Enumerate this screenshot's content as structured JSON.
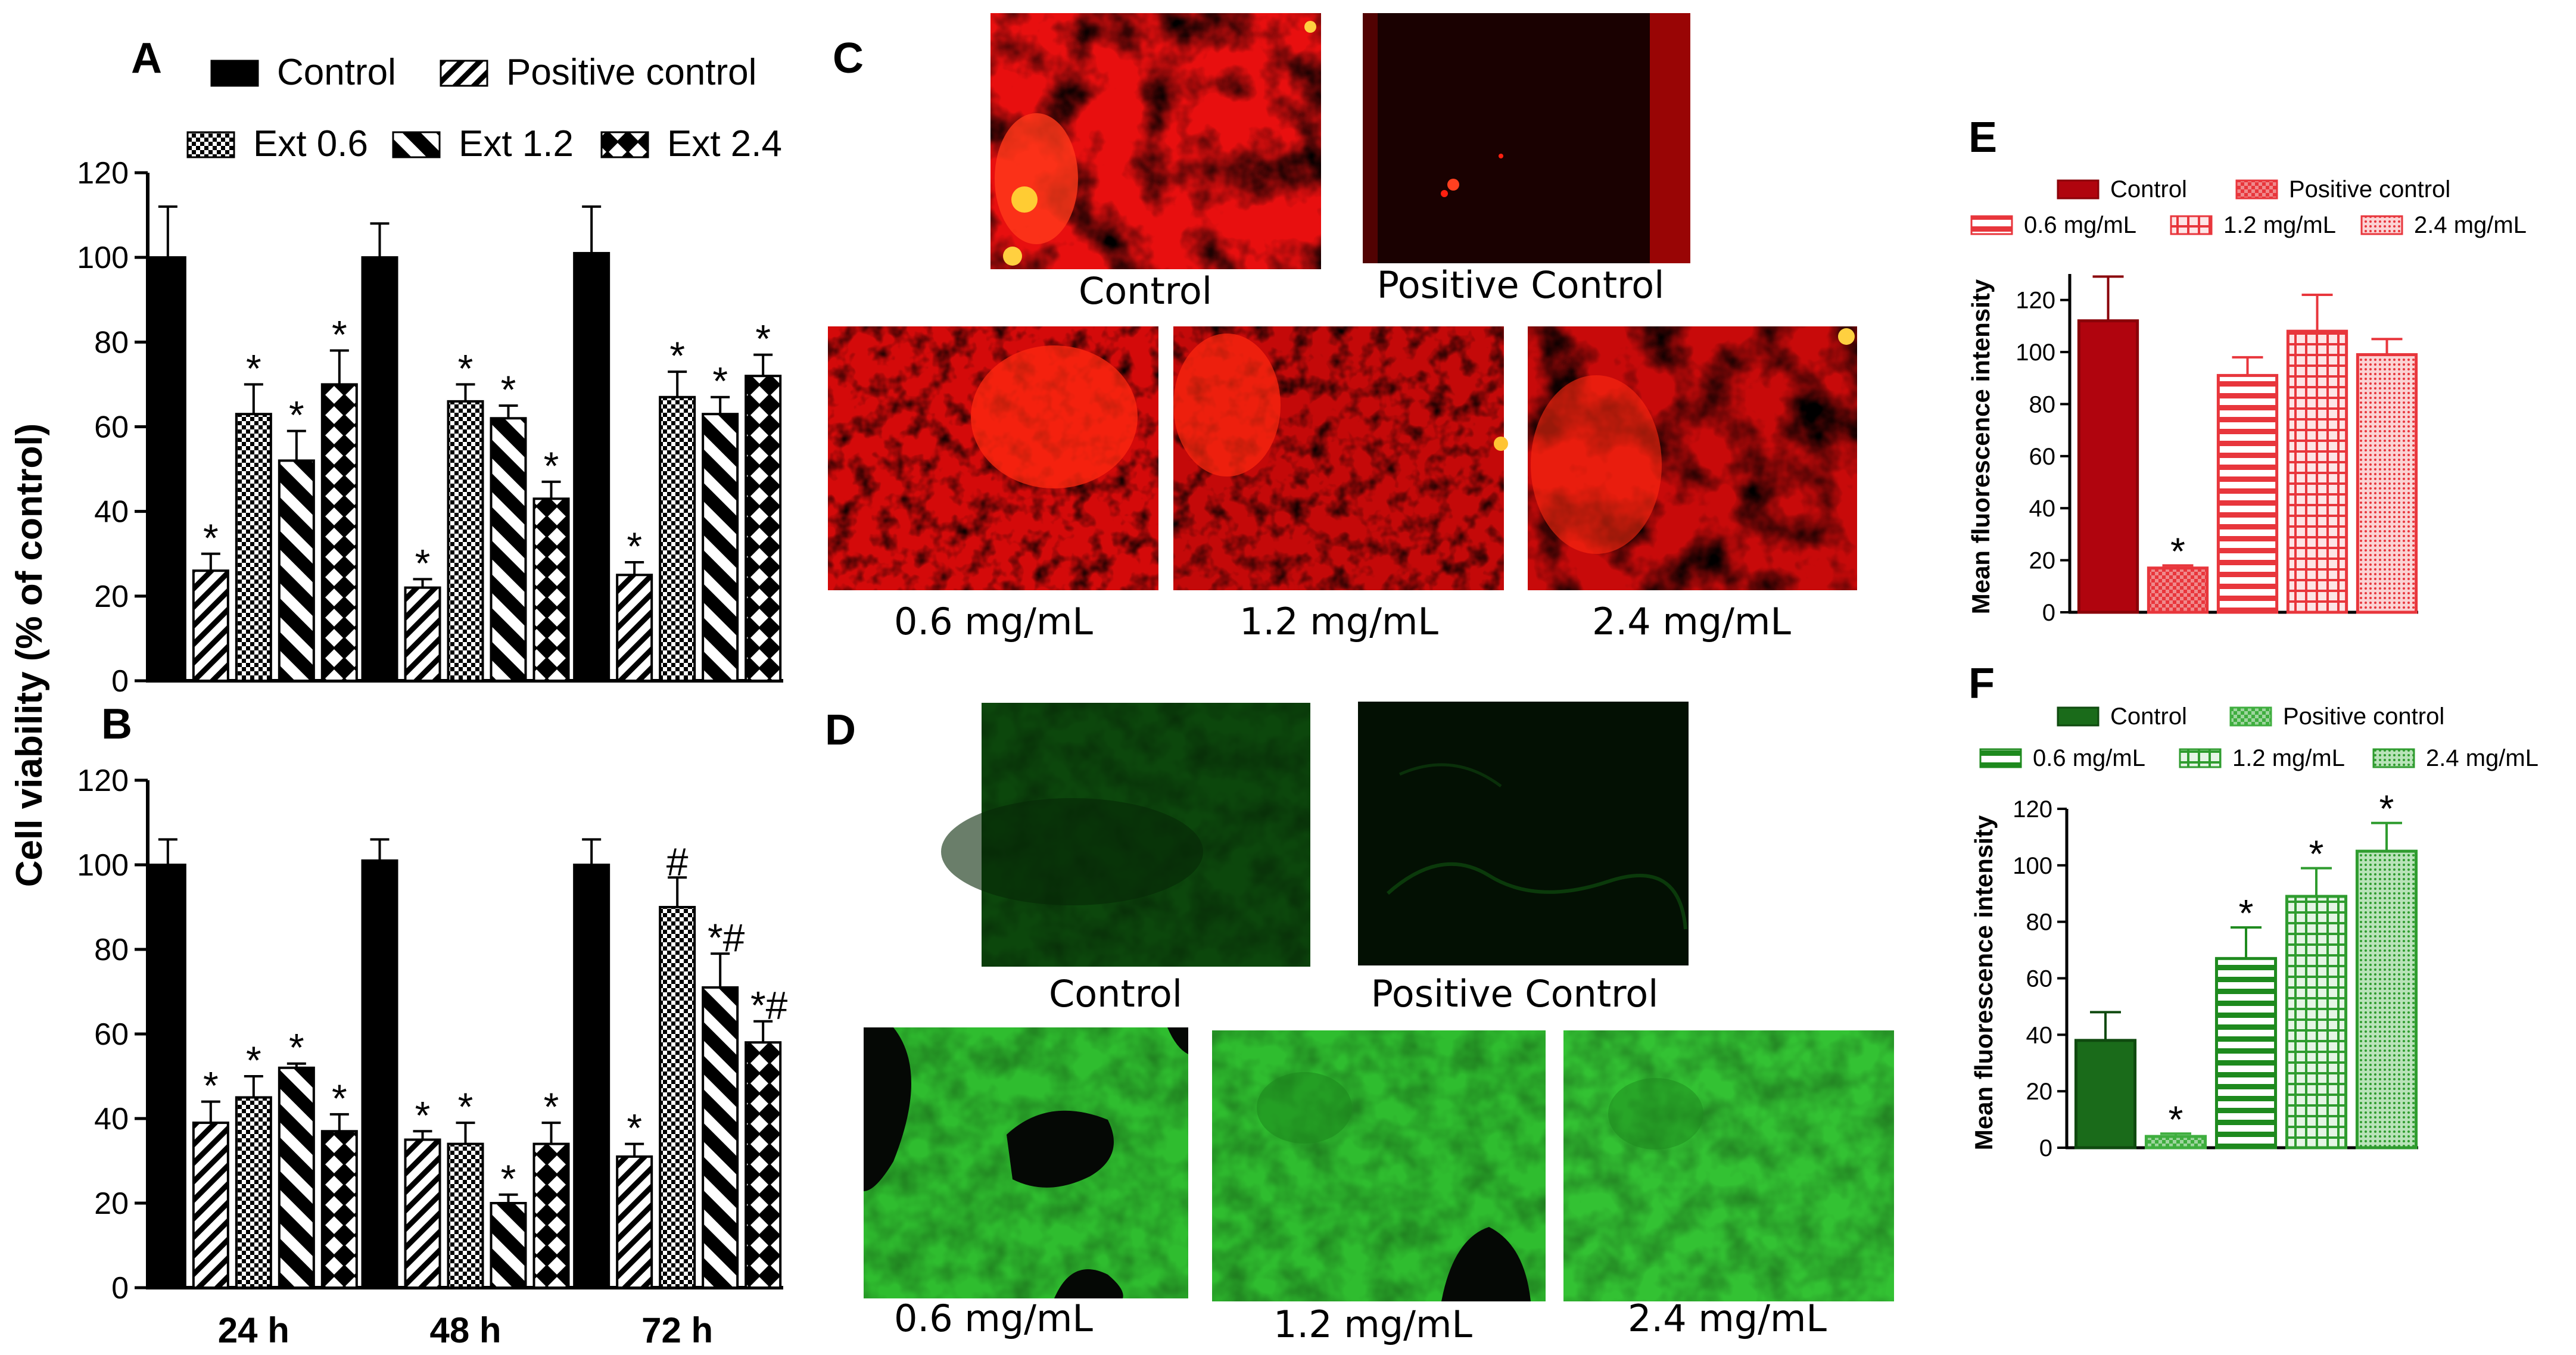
{
  "panels": {
    "A": "A",
    "B": "B",
    "C": "C",
    "D": "D",
    "E": "E",
    "F": "F"
  },
  "viability": {
    "ylabel": "Cell viability (% of control)",
    "categories": [
      "24 h",
      "48 h",
      "72 h"
    ],
    "legend": [
      "Control",
      "Positive control",
      "Ext 0.6",
      "Ext 1.2",
      "Ext 2.4"
    ],
    "yticks": [
      0,
      20,
      40,
      60,
      80,
      100,
      120
    ]
  },
  "images": {
    "C_labels": [
      "Control",
      "Positive Control",
      "0.6 mg/mL",
      "1.2 mg/mL",
      "2.4 mg/mL"
    ],
    "D_labels": [
      "Control",
      "Positive Control",
      "0.6 mg/mL",
      "1.2 mg/mL",
      "2.4 mg/mL"
    ]
  },
  "fluor": {
    "ylabel": "Mean fluorescence intensity",
    "legend": [
      "Control",
      "Positive control",
      "0.6 mg/mL",
      "1.2 mg/mL",
      "2.4 mg/mL"
    ],
    "colors": {
      "red": "#b0040e",
      "redLight": "#e8363c",
      "green": "#1a6b1a",
      "greenLight": "#3fae3f"
    }
  },
  "chart_data": [
    {
      "id": "A",
      "type": "bar",
      "ylabel": "Cell viability (% of control)",
      "ylim": [
        0,
        120
      ],
      "categories": [
        "24 h",
        "48 h",
        "72 h"
      ],
      "series": [
        {
          "name": "Control",
          "values": [
            100,
            100,
            101
          ],
          "errors": [
            12,
            8,
            11
          ],
          "marks": [
            "",
            "",
            ""
          ]
        },
        {
          "name": "Positive control",
          "values": [
            26,
            22,
            25
          ],
          "errors": [
            4,
            2,
            3
          ],
          "marks": [
            "*",
            "*",
            "*"
          ]
        },
        {
          "name": "Ext 0.6",
          "values": [
            63,
            66,
            67
          ],
          "errors": [
            7,
            4,
            6
          ],
          "marks": [
            "*",
            "*",
            "*"
          ]
        },
        {
          "name": "Ext 1.2",
          "values": [
            52,
            62,
            63
          ],
          "errors": [
            7,
            3,
            4
          ],
          "marks": [
            "*",
            "*",
            "*"
          ]
        },
        {
          "name": "Ext 2.4",
          "values": [
            70,
            43,
            72
          ],
          "errors": [
            8,
            4,
            5
          ],
          "marks": [
            "*",
            "*",
            "*"
          ]
        }
      ]
    },
    {
      "id": "B",
      "type": "bar",
      "ylim": [
        0,
        120
      ],
      "categories": [
        "24 h",
        "48 h",
        "72 h"
      ],
      "series": [
        {
          "name": "Control",
          "values": [
            100,
            101,
            100
          ],
          "errors": [
            6,
            5,
            6
          ],
          "marks": [
            "",
            "",
            ""
          ]
        },
        {
          "name": "Positive control",
          "values": [
            39,
            35,
            31
          ],
          "errors": [
            5,
            2,
            3
          ],
          "marks": [
            "*",
            "*",
            "*"
          ]
        },
        {
          "name": "Ext 0.6",
          "values": [
            45,
            34,
            90
          ],
          "errors": [
            5,
            5,
            7
          ],
          "marks": [
            "*",
            "*",
            "#"
          ]
        },
        {
          "name": "Ext 1.2",
          "values": [
            52,
            20,
            71
          ],
          "errors": [
            1,
            2,
            8
          ],
          "marks": [
            "*",
            "*",
            "*#"
          ]
        },
        {
          "name": "Ext 2.4",
          "values": [
            37,
            34,
            58
          ],
          "errors": [
            4,
            5,
            5
          ],
          "marks": [
            "*",
            "*",
            "*#"
          ]
        }
      ]
    },
    {
      "id": "E",
      "type": "bar",
      "ylabel": "Mean fluorescence intensity",
      "ylim": [
        0,
        130
      ],
      "yticks": [
        0,
        20,
        40,
        60,
        80,
        100,
        120
      ],
      "categories": [
        "Control",
        "Positive control",
        "0.6 mg/mL",
        "1.2 mg/mL",
        "2.4 mg/mL"
      ],
      "values": [
        112,
        17,
        91,
        108,
        99
      ],
      "errors": [
        17,
        1,
        7,
        14,
        6
      ],
      "marks": [
        "",
        "*",
        "",
        "",
        ""
      ]
    },
    {
      "id": "F",
      "type": "bar",
      "ylabel": "Mean fluorescence intensity",
      "ylim": [
        0,
        120
      ],
      "yticks": [
        0,
        20,
        40,
        60,
        80,
        100,
        120
      ],
      "categories": [
        "Control",
        "Positive control",
        "0.6 mg/mL",
        "1.2 mg/mL",
        "2.4 mg/mL"
      ],
      "values": [
        38,
        4,
        67,
        89,
        105
      ],
      "errors": [
        10,
        1,
        11,
        10,
        10
      ],
      "marks": [
        "",
        "*",
        "*",
        "*",
        "*"
      ]
    }
  ]
}
